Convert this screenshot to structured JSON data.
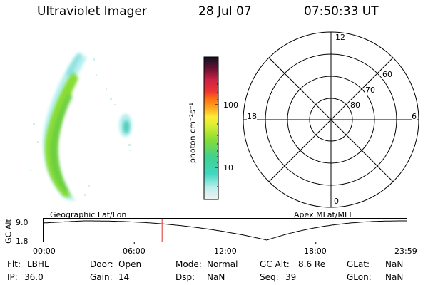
{
  "header": {
    "title": "Ultraviolet Imager",
    "date": "28 Jul 07",
    "time": "07:50:33 UT"
  },
  "colorbar": {
    "label": "photon cm⁻²s⁻¹",
    "tick_100": "100",
    "tick_10": "10"
  },
  "polar": {
    "mlt_top": "12",
    "mlt_left": "18",
    "mlt_right": "6",
    "mlt_bottom": "0",
    "lat_60": "60",
    "lat_70": "70",
    "lat_80": "80"
  },
  "timeline": {
    "left_caption": "Geographic Lat/Lon",
    "right_caption": "Apex MLat/MLT",
    "ylabel": "GC Alt",
    "ymax": "9.0",
    "ymin": "1.8",
    "ticks": [
      "00:00",
      "06:00",
      "12:00",
      "18:00",
      "23:59"
    ],
    "marker_fraction": 0.3265,
    "minimum_fraction": 0.615
  },
  "info": {
    "flt_label": "Flt:",
    "flt_value": "LBHL",
    "ip_label": "IP:",
    "ip_value": "36.0",
    "door_label": "Door:",
    "door_value": "Open",
    "gain_label": "Gain:",
    "gain_value": "14",
    "mode_label": "Mode:",
    "mode_value": "Normal",
    "dsp_label": "Dsp:",
    "dsp_value": "NaN",
    "gcalt_label": "GC Alt:",
    "gcalt_value": "8.6 Re",
    "seq_label": "Seq:",
    "seq_value": "39",
    "glat_label": "GLat:",
    "glat_value": "NaN",
    "glon_label": "GLon:",
    "glon_value": "NaN"
  },
  "colors": {
    "marker": "#e03030",
    "aurora_main": "#88dd33",
    "aurora_edge": "#55ddcc"
  }
}
